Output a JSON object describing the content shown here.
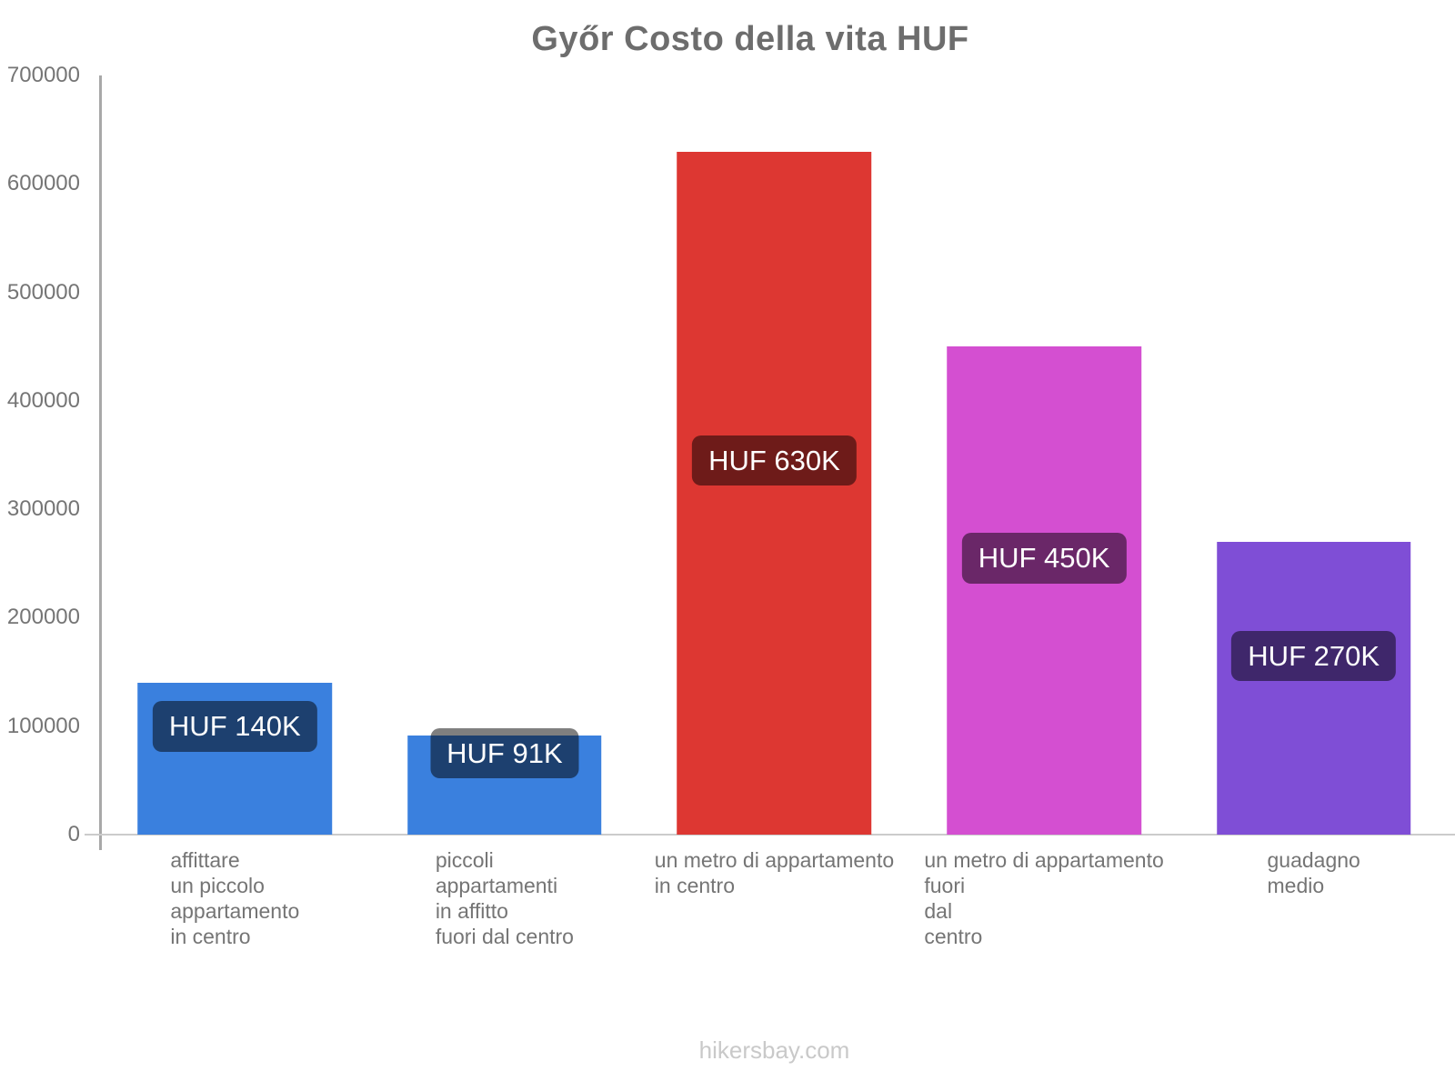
{
  "page": {
    "background": "#ffffff"
  },
  "header": {
    "title": "Győr Costo della vita HUF",
    "title_color": "#6d6d6d"
  },
  "footer": {
    "text": "hikersbay.com",
    "color": "#c9c9c9"
  },
  "chart_data": {
    "type": "bar",
    "title": "Győr Costo della vita HUF",
    "categories": [
      "affittare un piccolo appartamento in centro",
      "piccoli appartamenti in affitto fuori dal centro",
      "un metro di appartamento in centro",
      "un metro di appartamento fuori dal centro",
      "guadagno medio"
    ],
    "category_lines": [
      [
        "affittare",
        "un piccolo",
        "appartamento",
        "in centro"
      ],
      [
        "piccoli",
        "appartamenti",
        "in affitto",
        "fuori dal centro"
      ],
      [
        "un metro di appartamento",
        "in centro"
      ],
      [
        "un metro di appartamento",
        "fuori",
        "dal",
        "centro"
      ],
      [
        "guadagno",
        "medio"
      ]
    ],
    "values": [
      140000,
      91000,
      630000,
      450000,
      270000
    ],
    "value_labels": [
      "HUF 140K",
      "HUF 91K",
      "HUF 630K",
      "HUF 450K",
      "HUF 270K"
    ],
    "colors": [
      "#3a80de",
      "#3a80de",
      "#dd3732",
      "#d44fd1",
      "#7f4ed6"
    ],
    "ymax": 700000,
    "ylim": [
      0,
      700000
    ],
    "yaxis_ticks": [
      700000,
      600000,
      500000,
      400000,
      300000,
      200000,
      100000,
      0
    ],
    "xlabel": "",
    "ylabel": "",
    "grid": false,
    "legend": false,
    "value_label_style": {
      "background": "rgba(0,0,0,0.5)",
      "text_color": "#ffffff"
    },
    "axis_style": {
      "y_axis_line_color": "#a8a8a8",
      "baseline_color": "#cbcbcb",
      "tick_text_color": "#757575",
      "category_text_color": "#757575"
    }
  }
}
